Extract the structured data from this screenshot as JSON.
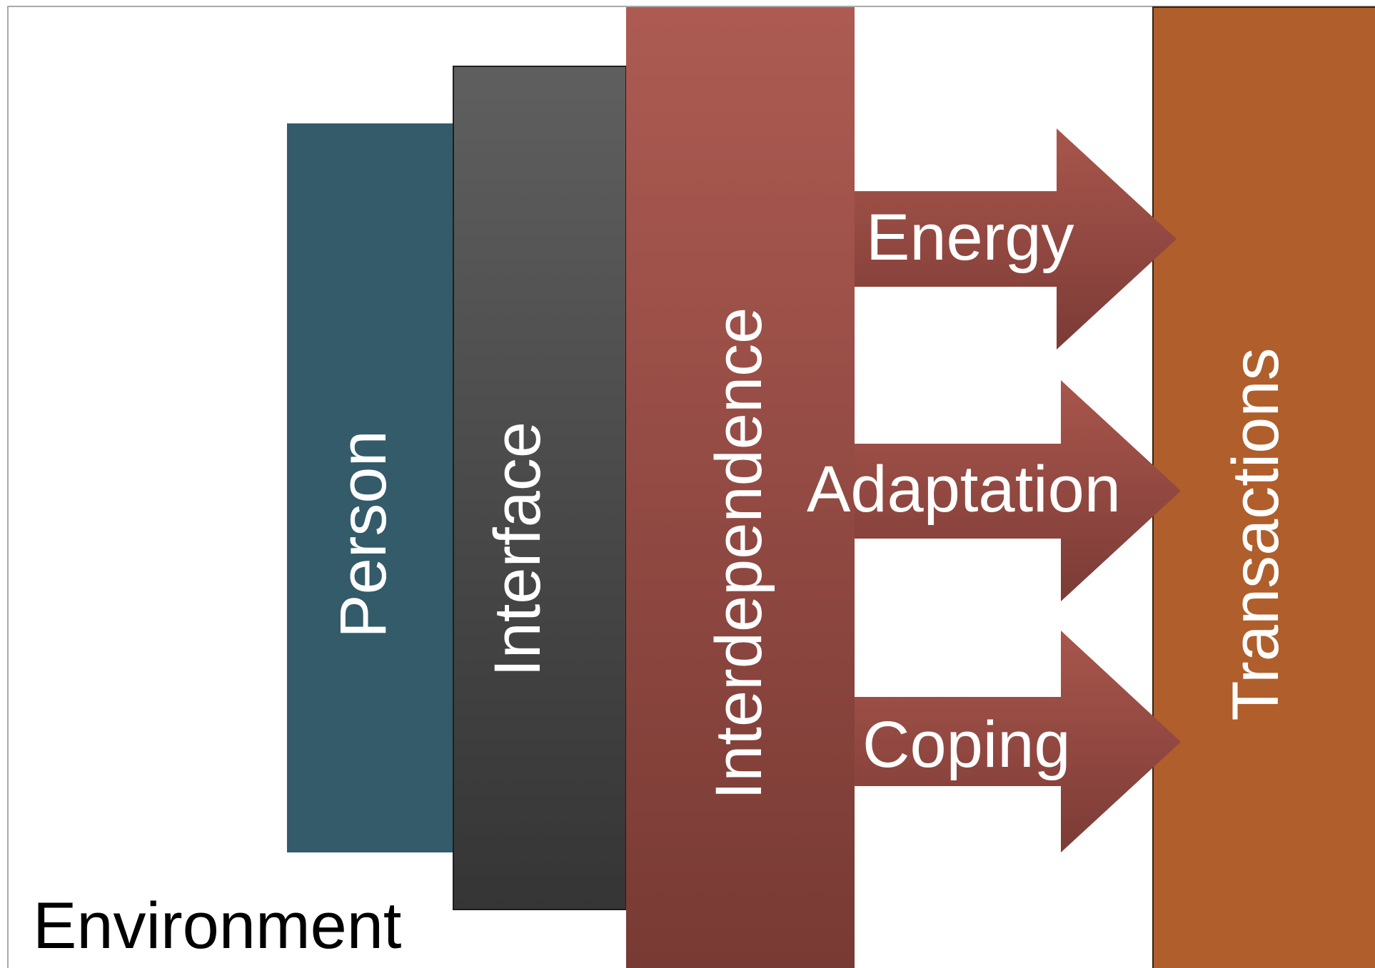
{
  "diagram": {
    "environment_label": "Environment",
    "columns": {
      "person": "Person",
      "interface": "Interface",
      "interdependence": "Interdependence",
      "transactions": "Transactions"
    },
    "arrows": [
      {
        "label": "Energy"
      },
      {
        "label": "Adaptation"
      },
      {
        "label": "Coping"
      }
    ],
    "colors": {
      "person": "#335b69",
      "interface_top": "#5f5f5f",
      "interface_bottom": "#353535",
      "interdependence_top": "#ad5b52",
      "interdependence_bottom": "#783a34",
      "transactions": "#b05e2b",
      "arrow_top": "#a8564c",
      "arrow_bottom": "#7c3b36"
    }
  }
}
